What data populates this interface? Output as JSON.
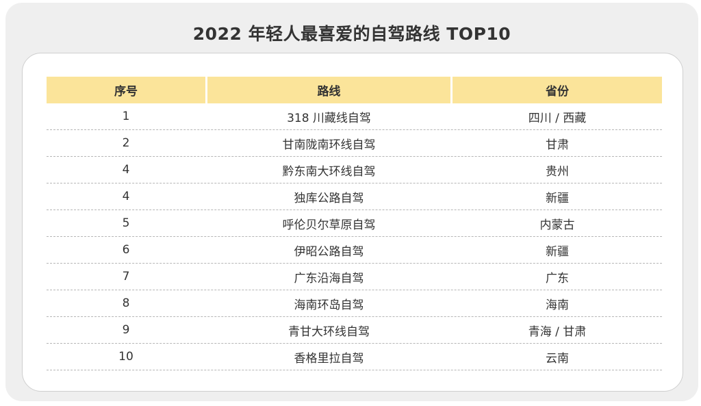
{
  "title": "2022 年轻人最喜爱的自驾路线 TOP10",
  "headers": [
    "序号",
    "路线",
    "省份"
  ],
  "rows": [
    {
      "rank": "1",
      "route": "318 川藏线自驾",
      "province": "四川 / 西藏"
    },
    {
      "rank": "2",
      "route": "甘南陇南环线自驾",
      "province": "甘肃"
    },
    {
      "rank": "4",
      "route": "黔东南大环线自驾",
      "province": "贵州"
    },
    {
      "rank": "4",
      "route": "独库公路自驾",
      "province": "新疆"
    },
    {
      "rank": "5",
      "route": "呼伦贝尔草原自驾",
      "province": "内蒙古"
    },
    {
      "rank": "6",
      "route": "伊昭公路自驾",
      "province": "新疆"
    },
    {
      "rank": "7",
      "route": "广东沿海自驾",
      "province": "广东"
    },
    {
      "rank": "8",
      "route": "海南环岛自驾",
      "province": "海南"
    },
    {
      "rank": "9",
      "route": "青甘大环线自驾",
      "province": "青海 / 甘肃"
    },
    {
      "rank": "10",
      "route": "香格里拉自驾",
      "province": "云南"
    }
  ],
  "colors": {
    "header_bg": "#fbe49a",
    "outer_bg": "#efefef",
    "text": "#333333"
  }
}
